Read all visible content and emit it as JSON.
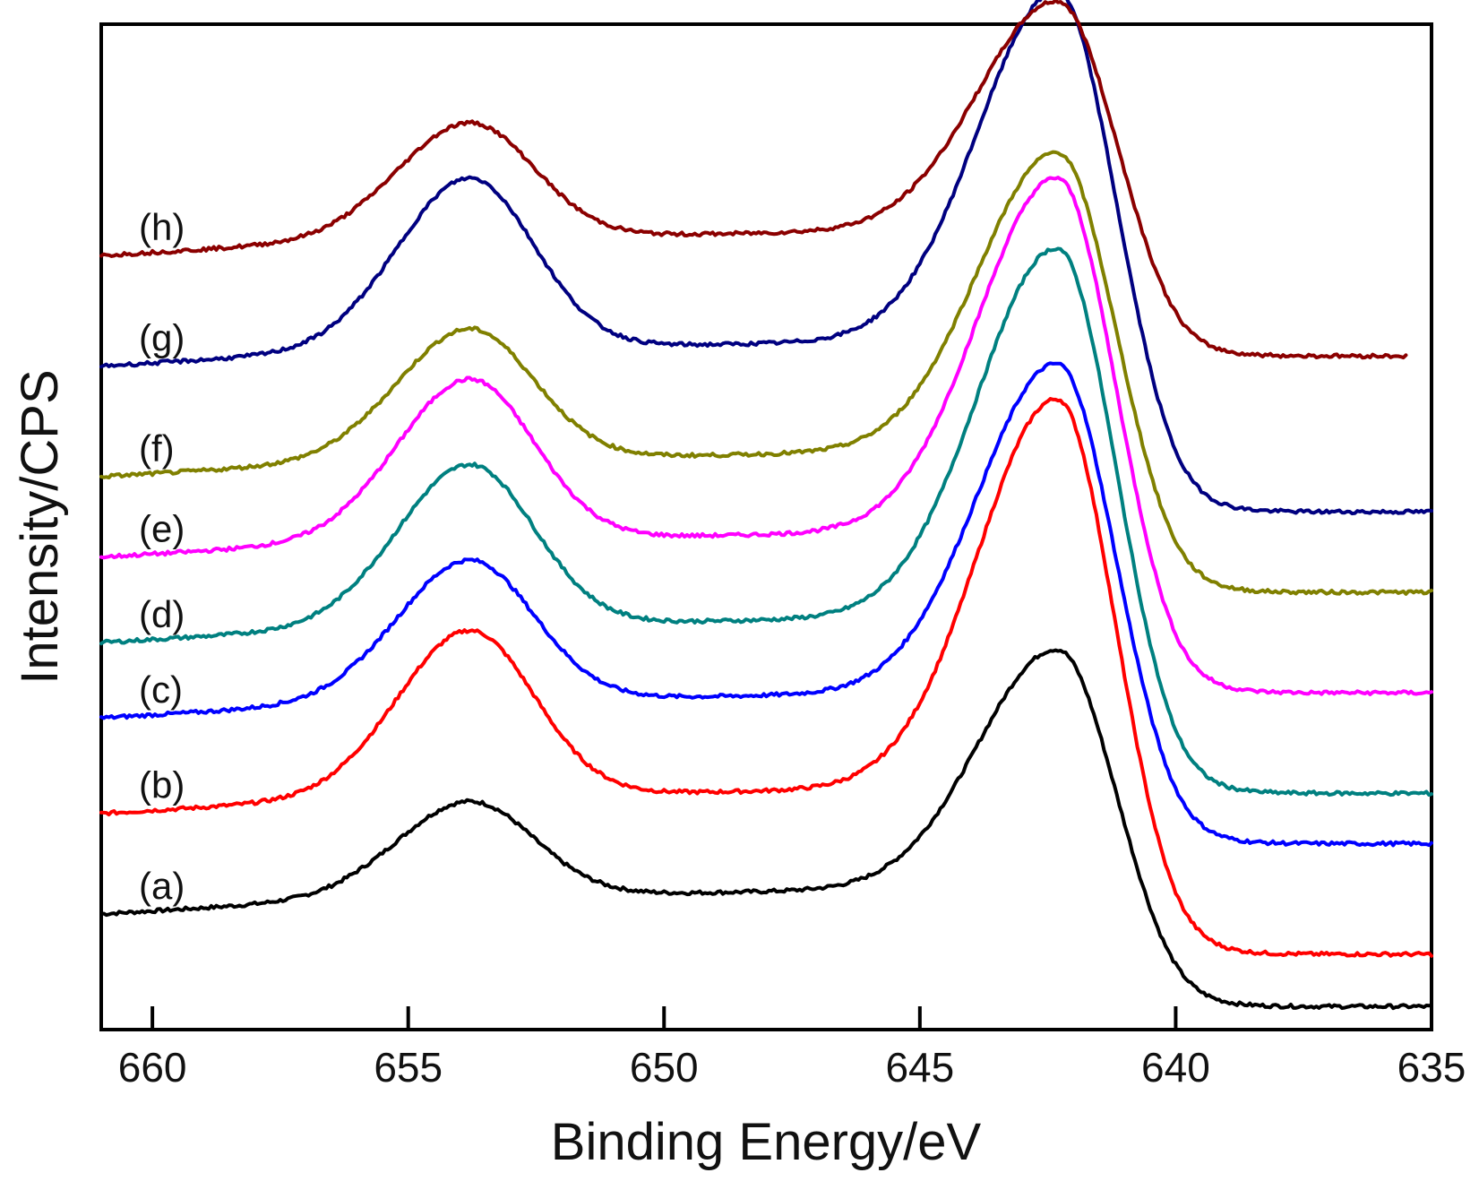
{
  "chart_data": {
    "type": "line",
    "title": "",
    "xlabel": "Binding Energy/eV",
    "ylabel": "Intensity/CPS",
    "xlim": [
      661,
      635
    ],
    "x_reversed": true,
    "ylim": [
      0,
      100
    ],
    "yticks_shown": false,
    "grid": false,
    "legend": "none",
    "xticks": [
      "660",
      "655",
      "650",
      "645",
      "640",
      "635"
    ],
    "series": [
      {
        "name": "(a)",
        "color": "#000000",
        "x_range": [
          661,
          635
        ],
        "baseline": 11.5,
        "peak1_x": 653.8,
        "peak1_h": 9.5,
        "peak2_x": 642.3,
        "peak2_h": 24.0,
        "tail_end": 2.3
      },
      {
        "name": "(b)",
        "color": "#ff0000",
        "x_range": [
          661,
          635
        ],
        "baseline": 21.5,
        "peak1_x": 653.8,
        "peak1_h": 16.5,
        "peak2_x": 642.3,
        "peak2_h": 39.0,
        "tail_end": 7.5
      },
      {
        "name": "(c)",
        "color": "#0000ff",
        "x_range": [
          661,
          635
        ],
        "baseline": 31.0,
        "peak1_x": 653.8,
        "peak1_h": 14.0,
        "peak2_x": 642.3,
        "peak2_h": 33.0,
        "tail_end": 18.5
      },
      {
        "name": "(d)",
        "color": "#008080",
        "x_range": [
          661,
          635
        ],
        "baseline": 38.5,
        "peak1_x": 653.8,
        "peak1_h": 16.0,
        "peak2_x": 642.3,
        "peak2_h": 37.0,
        "tail_end": 23.5
      },
      {
        "name": "(e)",
        "color": "#ff00ff",
        "x_range": [
          661,
          635
        ],
        "baseline": 47.0,
        "peak1_x": 653.8,
        "peak1_h": 16.0,
        "peak2_x": 642.3,
        "peak2_h": 35.5,
        "tail_end": 33.5
      },
      {
        "name": "(f)",
        "color": "#808000",
        "x_range": [
          661,
          635
        ],
        "baseline": 55.0,
        "peak1_x": 653.8,
        "peak1_h": 13.0,
        "peak2_x": 642.3,
        "peak2_h": 30.0,
        "tail_end": 43.5
      },
      {
        "name": "(g)",
        "color": "#000080",
        "x_range": [
          661,
          635
        ],
        "baseline": 66.0,
        "peak1_x": 653.8,
        "peak1_h": 17.0,
        "peak2_x": 642.3,
        "peak2_h": 35.0,
        "tail_end": 51.5
      },
      {
        "name": "(h)",
        "color": "#8b0000",
        "x_range": [
          661,
          635.5
        ],
        "baseline": 77.0,
        "peak1_x": 653.8,
        "peak1_h": 11.5,
        "peak2_x": 642.3,
        "peak2_h": 23.0,
        "tail_end": 67.0
      }
    ]
  }
}
